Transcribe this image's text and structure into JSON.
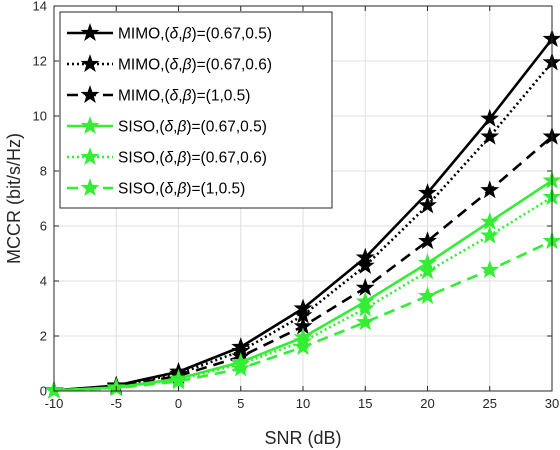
{
  "chart_data": {
    "type": "line",
    "title": "",
    "xlabel": "SNR (dB)",
    "ylabel": "MCCR (bit/s/Hz)",
    "xlim": [
      -10,
      30
    ],
    "ylim": [
      0,
      14
    ],
    "x_ticks": [
      -10,
      -5,
      0,
      5,
      10,
      15,
      20,
      25,
      30
    ],
    "x_tick_labels": [
      "-10",
      "-5",
      "0",
      "5",
      "10",
      "15",
      "20",
      "25",
      "30"
    ],
    "y_ticks": [
      0,
      2,
      4,
      6,
      8,
      10,
      12,
      14
    ],
    "y_tick_labels": [
      "0",
      "2",
      "4",
      "6",
      "8",
      "10",
      "12",
      "14"
    ],
    "grid": true,
    "legend_position": "top-left",
    "x": [
      -10,
      -5,
      0,
      5,
      10,
      15,
      20,
      25,
      30
    ],
    "series": [
      {
        "prefix": "MIMO,(",
        "delta": "δ",
        "comma": ",",
        "beta": "β",
        "suffix": ")=(0.67,0.5)",
        "color": "#000000",
        "dash": "solid",
        "marker": "star",
        "values": [
          0.02,
          0.2,
          0.7,
          1.6,
          3.0,
          4.85,
          7.2,
          9.9,
          12.8
        ]
      },
      {
        "prefix": "MIMO,(",
        "delta": "δ",
        "comma": ",",
        "beta": "β",
        "suffix": ")=(0.67,0.6)",
        "color": "#000000",
        "dash": "dotted",
        "marker": "star",
        "values": [
          0.02,
          0.18,
          0.62,
          1.45,
          2.75,
          4.55,
          6.75,
          9.25,
          11.95
        ]
      },
      {
        "prefix": "MIMO,(",
        "delta": "δ",
        "comma": ",",
        "beta": "β",
        "suffix": ")=(1,0.5)",
        "color": "#000000",
        "dash": "dashed",
        "marker": "star",
        "values": [
          0.02,
          0.15,
          0.55,
          1.25,
          2.35,
          3.75,
          5.45,
          7.3,
          9.25
        ]
      },
      {
        "prefix": "SISO,(",
        "delta": "δ",
        "comma": ",",
        "beta": "β",
        "suffix": ")=(0.67,0.5)",
        "color": "#33ee33",
        "dash": "solid",
        "marker": "star",
        "values": [
          0.02,
          0.13,
          0.45,
          1.05,
          1.95,
          3.25,
          4.65,
          6.15,
          7.65
        ]
      },
      {
        "prefix": "SISO,(",
        "delta": "δ",
        "comma": ",",
        "beta": "β",
        "suffix": ")=(0.67,0.6)",
        "color": "#33ee33",
        "dash": "dotted",
        "marker": "star",
        "values": [
          0.02,
          0.12,
          0.42,
          0.98,
          1.8,
          3.0,
          4.35,
          5.65,
          7.05
        ]
      },
      {
        "prefix": "SISO,(",
        "delta": "δ",
        "comma": ",",
        "beta": "β",
        "suffix": ")=(1,0.5)",
        "color": "#33ee33",
        "dash": "dashed",
        "marker": "star",
        "values": [
          0.02,
          0.1,
          0.35,
          0.82,
          1.6,
          2.5,
          3.45,
          4.4,
          5.45
        ]
      }
    ]
  }
}
